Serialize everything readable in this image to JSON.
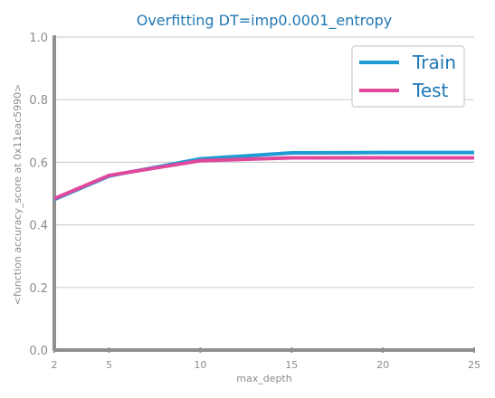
{
  "chart_data": {
    "type": "line",
    "title": "Overfitting DT=imp0.0001_entropy",
    "xlabel": "max_depth",
    "ylabel": "<function accuracy_score at 0x11eac5990>",
    "x": [
      2,
      5,
      10,
      15,
      20,
      25
    ],
    "xlim": [
      2,
      25
    ],
    "ylim": [
      0.0,
      1.0
    ],
    "yticks": [
      "0.0",
      "0.2",
      "0.4",
      "0.6",
      "0.8",
      "1.0"
    ],
    "xticks": [
      "2",
      "5",
      "10",
      "15",
      "20",
      "25"
    ],
    "grid": "horizontal",
    "legend_position": "top-right",
    "series": [
      {
        "name": "Train",
        "color": "#1f9bd4",
        "values": [
          0.481,
          0.556,
          0.611,
          0.63,
          0.631,
          0.631
        ]
      },
      {
        "name": "Test",
        "color": "#e0489c",
        "values": [
          0.484,
          0.558,
          0.605,
          0.614,
          0.614,
          0.614
        ]
      }
    ]
  }
}
